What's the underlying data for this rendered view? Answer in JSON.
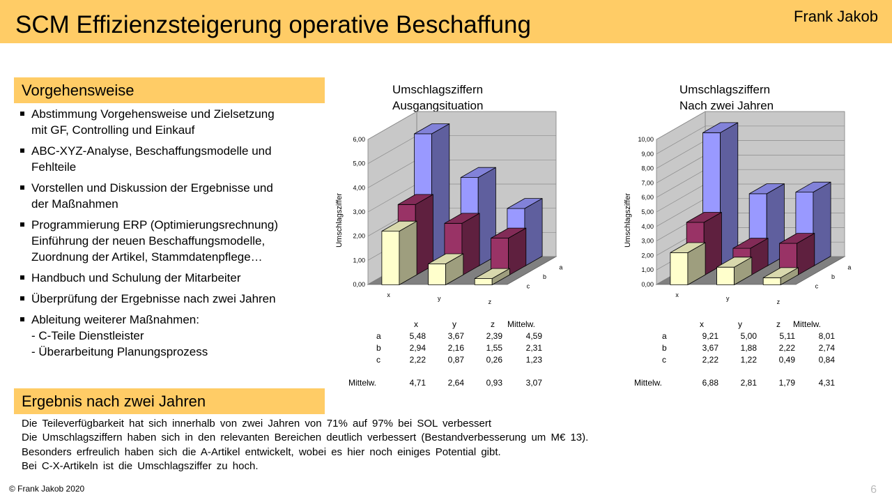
{
  "header": {
    "title": "SCM Effizienzsteigerung operative Beschaffung",
    "author": "Frank Jakob"
  },
  "approach": {
    "heading": "Vorgehensweise",
    "items": [
      "Abstimmung Vorgehensweise und Zielsetzung\nmit GF, Controlling und Einkauf",
      "ABC-XYZ-Analyse, Beschaffungsmodelle und\nFehlteile",
      "Vorstellen und Diskussion der Ergebnisse und\nder Maßnahmen",
      "Programmierung ERP (Optimierungsrechnung)\nEinführung der neuen Beschaffungsmodelle,\nZuordnung der Artikel, Stammdatenpflege…",
      "Handbuch und Schulung der Mitarbeiter",
      "Überprüfung der Ergebnisse nach zwei Jahren",
      "Ableitung weiterer Maßnahmen:\n- C-Teile Dienstleister\n- Überarbeitung Planungsprozess"
    ]
  },
  "result": {
    "heading": "Ergebnis nach zwei Jahren",
    "lines": [
      "Die Teileverfügbarkeit hat sich innerhalb von zwei Jahren von 71% auf 97% bei SOL verbessert",
      "Die Umschlagsziffern haben sich in den relevanten Bereichen deutlich verbessert (Bestandverbesserung um M€ 13).",
      "Besonders erfreulich haben sich die A-Artikel entwickelt, wobei es hier noch einiges Potential gibt.",
      "Bei C-X-Artikeln ist die Umschlagsziffer zu hoch."
    ]
  },
  "footer": {
    "copyright": "© Frank Jakob 2020",
    "page": "6"
  },
  "colors": {
    "accent": "#ffcc66",
    "series_a": "#9999ff",
    "series_b": "#993366",
    "series_c": "#ffffcc"
  },
  "chart_data": [
    {
      "type": "bar3d",
      "title": "Umschlagsziffern\nAusgangsituation",
      "ylabel": "Umschlagsziffer",
      "categories": [
        "x",
        "y",
        "z"
      ],
      "series": [
        {
          "name": "a",
          "values": [
            5.48,
            3.67,
            2.39
          ]
        },
        {
          "name": "b",
          "values": [
            2.94,
            2.16,
            1.55
          ]
        },
        {
          "name": "c",
          "values": [
            2.22,
            0.87,
            0.26
          ]
        }
      ],
      "ylim": [
        0,
        6
      ],
      "yticks": [
        "0,00",
        "1,00",
        "2,00",
        "3,00",
        "4,00",
        "5,00",
        "6,00"
      ],
      "table": {
        "header": [
          "x",
          "y",
          "z",
          "Mittelw."
        ],
        "rows": [
          {
            "label": "a",
            "cells": [
              "5,48",
              "3,67",
              "2,39",
              "4,59"
            ]
          },
          {
            "label": "b",
            "cells": [
              "2,94",
              "2,16",
              "1,55",
              "2,31"
            ]
          },
          {
            "label": "c",
            "cells": [
              "2,22",
              "0,87",
              "0,26",
              "1,23"
            ]
          }
        ],
        "mean_row": {
          "label": "Mittelw.",
          "cells": [
            "4,71",
            "2,64",
            "0,93",
            "3,07"
          ]
        }
      }
    },
    {
      "type": "bar3d",
      "title": "Umschlagsziffern\nNach zwei Jahren",
      "ylabel": "Umschlagsziffer",
      "categories": [
        "x",
        "y",
        "z"
      ],
      "series": [
        {
          "name": "a",
          "values": [
            9.21,
            5.0,
            5.11
          ]
        },
        {
          "name": "b",
          "values": [
            3.67,
            1.88,
            2.22
          ]
        },
        {
          "name": "c",
          "values": [
            2.22,
            1.22,
            0.49
          ]
        }
      ],
      "ylim": [
        0,
        10
      ],
      "yticks": [
        "0,00",
        "1,00",
        "2,00",
        "3,00",
        "4,00",
        "5,00",
        "6,00",
        "7,00",
        "8,00",
        "9,00",
        "10,00"
      ],
      "table": {
        "header": [
          "x",
          "y",
          "z",
          "Mittelw."
        ],
        "rows": [
          {
            "label": "a",
            "cells": [
              "9,21",
              "5,00",
              "5,11",
              "8,01"
            ]
          },
          {
            "label": "b",
            "cells": [
              "3,67",
              "1,88",
              "2,22",
              "2,74"
            ]
          },
          {
            "label": "c",
            "cells": [
              "2,22",
              "1,22",
              "0,49",
              "0,84"
            ]
          }
        ],
        "mean_row": {
          "label": "Mittelw.",
          "cells": [
            "6,88",
            "2,81",
            "1,79",
            "4,31"
          ]
        }
      }
    }
  ]
}
